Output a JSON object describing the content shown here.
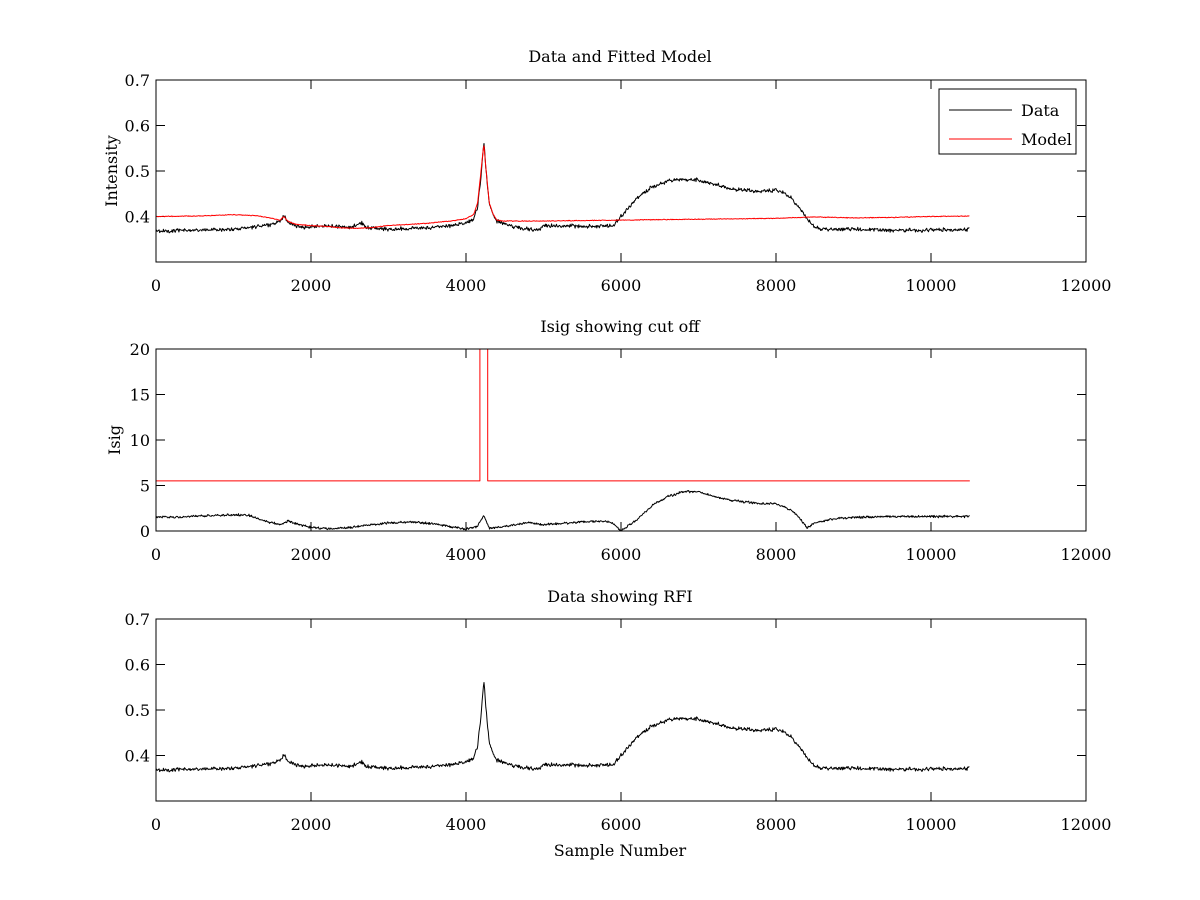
{
  "colors": {
    "data": "#000000",
    "model": "#ff0000",
    "frame": "#000000",
    "background": "#ffffff"
  },
  "chart_data": [
    {
      "type": "line",
      "title": "Data and Fitted Model",
      "xlabel": "",
      "ylabel": "Intensity",
      "xlim": [
        0,
        12000
      ],
      "ylim": [
        0.3,
        0.7
      ],
      "xticks": [
        0,
        2000,
        4000,
        6000,
        8000,
        10000,
        12000
      ],
      "yticks": [
        0.4,
        0.5,
        0.6,
        0.7
      ],
      "ytick_labels": [
        "0.4",
        "0.5",
        "0.6",
        "0.7"
      ],
      "legend": {
        "position": "top-right",
        "entries": [
          "Data",
          "Model"
        ]
      },
      "grid": false,
      "series": [
        {
          "name": "Data",
          "color": "#000000",
          "noise": 0.005,
          "x": [
            0,
            500,
            1000,
            1300,
            1500,
            1600,
            1660,
            1700,
            1800,
            1900,
            2000,
            2100,
            2300,
            2500,
            2600,
            2650,
            2700,
            3000,
            3500,
            3800,
            4000,
            4100,
            4150,
            4200,
            4230,
            4260,
            4300,
            4350,
            4400,
            4500,
            4600,
            4800,
            4950,
            5000,
            5300,
            5600,
            5900,
            6000,
            6200,
            6400,
            6600,
            6800,
            7000,
            7200,
            7400,
            7600,
            7800,
            8000,
            8100,
            8200,
            8300,
            8400,
            8500,
            8600,
            8800,
            9000,
            9500,
            10000,
            10500
          ],
          "y": [
            0.368,
            0.37,
            0.372,
            0.378,
            0.383,
            0.39,
            0.402,
            0.388,
            0.38,
            0.375,
            0.378,
            0.38,
            0.378,
            0.376,
            0.382,
            0.386,
            0.376,
            0.372,
            0.375,
            0.38,
            0.385,
            0.395,
            0.42,
            0.5,
            0.565,
            0.5,
            0.43,
            0.405,
            0.39,
            0.385,
            0.378,
            0.372,
            0.37,
            0.38,
            0.38,
            0.378,
            0.38,
            0.4,
            0.44,
            0.465,
            0.478,
            0.482,
            0.48,
            0.472,
            0.46,
            0.458,
            0.455,
            0.458,
            0.452,
            0.44,
            0.42,
            0.395,
            0.378,
            0.372,
            0.372,
            0.372,
            0.37,
            0.37,
            0.372
          ]
        },
        {
          "name": "Model",
          "color": "#ff0000",
          "noise": 0.001,
          "x": [
            0,
            500,
            1000,
            1300,
            1500,
            1600,
            1650,
            1700,
            1800,
            2000,
            2200,
            2400,
            2600,
            2800,
            3000,
            3500,
            3800,
            4000,
            4100,
            4150,
            4200,
            4230,
            4260,
            4300,
            4350,
            4400,
            4500,
            5000,
            6000,
            7000,
            8000,
            8500,
            9000,
            9500,
            10000,
            10500
          ],
          "y": [
            0.4,
            0.401,
            0.404,
            0.402,
            0.396,
            0.392,
            0.4,
            0.39,
            0.383,
            0.38,
            0.378,
            0.375,
            0.374,
            0.376,
            0.38,
            0.385,
            0.39,
            0.395,
            0.405,
            0.43,
            0.51,
            0.56,
            0.5,
            0.43,
            0.405,
            0.392,
            0.39,
            0.39,
            0.392,
            0.394,
            0.396,
            0.399,
            0.397,
            0.398,
            0.4,
            0.401
          ]
        }
      ]
    },
    {
      "type": "line",
      "title": "Isig showing cut off",
      "xlabel": "",
      "ylabel": "Isig",
      "xlim": [
        0,
        12000
      ],
      "ylim": [
        0,
        20
      ],
      "xticks": [
        0,
        2000,
        4000,
        6000,
        8000,
        10000,
        12000
      ],
      "yticks": [
        0,
        5,
        10,
        15,
        20
      ],
      "ytick_labels": [
        "0",
        "5",
        "10",
        "15",
        "20"
      ],
      "grid": false,
      "series": [
        {
          "color": "#000000",
          "noise": 0.15,
          "x": [
            0,
            500,
            1000,
            1200,
            1400,
            1600,
            1700,
            1800,
            2000,
            2200,
            2500,
            3000,
            3300,
            3600,
            4000,
            4150,
            4230,
            4300,
            4500,
            4800,
            5000,
            5500,
            5800,
            5900,
            6000,
            6200,
            6400,
            6600,
            6800,
            7000,
            7200,
            7400,
            7600,
            7800,
            8000,
            8200,
            8300,
            8400,
            8500,
            8700,
            9000,
            9500,
            10000,
            10500
          ],
          "y": [
            1.5,
            1.6,
            1.8,
            1.7,
            1.1,
            0.7,
            1.1,
            0.8,
            0.4,
            0.25,
            0.4,
            0.9,
            1.0,
            0.8,
            0.2,
            0.5,
            1.7,
            0.3,
            0.5,
            0.9,
            0.7,
            1.0,
            1.1,
            0.8,
            0.0,
            1.2,
            2.8,
            3.8,
            4.3,
            4.3,
            3.8,
            3.4,
            3.2,
            3.0,
            3.0,
            2.3,
            1.5,
            0.3,
            0.9,
            1.3,
            1.5,
            1.6,
            1.6,
            1.6
          ]
        },
        {
          "color": "#ff0000",
          "noise": 0,
          "x": [
            0,
            4180,
            4180,
            4280,
            4280,
            10500
          ],
          "y": [
            5.5,
            5.5,
            20,
            20,
            5.5,
            5.5
          ]
        }
      ]
    },
    {
      "type": "line",
      "title": "Data showing RFI",
      "xlabel": "Sample Number",
      "ylabel": "",
      "xlim": [
        0,
        12000
      ],
      "ylim": [
        0.3,
        0.7
      ],
      "xticks": [
        0,
        2000,
        4000,
        6000,
        8000,
        10000,
        12000
      ],
      "yticks": [
        0.4,
        0.5,
        0.6,
        0.7
      ],
      "ytick_labels": [
        "0.4",
        "0.5",
        "0.6",
        "0.7"
      ],
      "grid": false,
      "series": [
        {
          "color": "#000000",
          "noise": 0.005,
          "x": [
            0,
            500,
            1000,
            1300,
            1500,
            1600,
            1660,
            1700,
            1800,
            1900,
            2000,
            2100,
            2300,
            2500,
            2600,
            2650,
            2700,
            3000,
            3500,
            3800,
            4000,
            4100,
            4150,
            4200,
            4230,
            4260,
            4300,
            4350,
            4400,
            4500,
            4600,
            4800,
            4950,
            5000,
            5300,
            5600,
            5900,
            6000,
            6200,
            6400,
            6600,
            6800,
            7000,
            7200,
            7400,
            7600,
            7800,
            8000,
            8100,
            8200,
            8300,
            8400,
            8500,
            8600,
            8800,
            9000,
            9500,
            10000,
            10500
          ],
          "y": [
            0.368,
            0.37,
            0.372,
            0.378,
            0.383,
            0.39,
            0.402,
            0.388,
            0.38,
            0.375,
            0.378,
            0.38,
            0.378,
            0.376,
            0.382,
            0.386,
            0.376,
            0.372,
            0.375,
            0.38,
            0.385,
            0.395,
            0.42,
            0.5,
            0.565,
            0.5,
            0.43,
            0.405,
            0.39,
            0.385,
            0.378,
            0.372,
            0.37,
            0.38,
            0.38,
            0.378,
            0.38,
            0.4,
            0.44,
            0.465,
            0.478,
            0.482,
            0.48,
            0.472,
            0.46,
            0.458,
            0.455,
            0.458,
            0.452,
            0.44,
            0.42,
            0.395,
            0.378,
            0.372,
            0.372,
            0.372,
            0.37,
            0.37,
            0.372
          ]
        }
      ]
    }
  ]
}
